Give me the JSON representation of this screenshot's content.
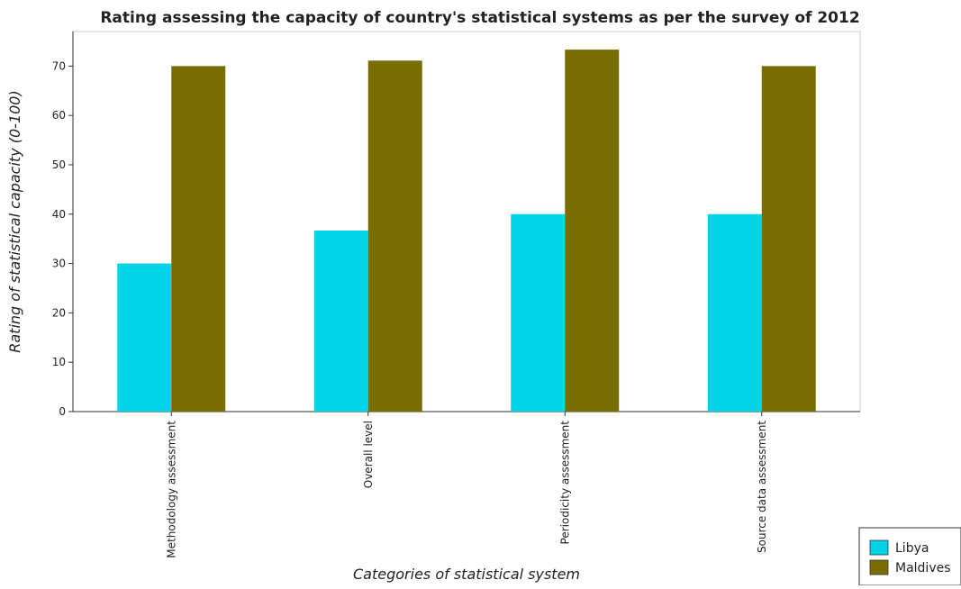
{
  "chart_data": {
    "type": "bar",
    "title": "Rating assessing the capacity of country's statistical systems as per the survey of 2012",
    "xlabel": "Categories of statistical system",
    "ylabel": "Rating of statistical capacity (0-100)",
    "categories": [
      "Methodology assessment",
      "Overall level",
      "Periodicity assessment",
      "Source data assessment"
    ],
    "series": [
      {
        "name": "Libya",
        "color": "#00d4e6",
        "values": [
          30,
          36.67,
          40,
          40
        ]
      },
      {
        "name": "Maldives",
        "color": "#7a6d00",
        "values": [
          70,
          71.11,
          73.33,
          70
        ]
      }
    ],
    "ylim": [
      0,
      77
    ],
    "yticks": [
      0,
      10,
      20,
      30,
      40,
      50,
      60,
      70
    ],
    "grid": false,
    "legend_position": "bottom-right"
  }
}
